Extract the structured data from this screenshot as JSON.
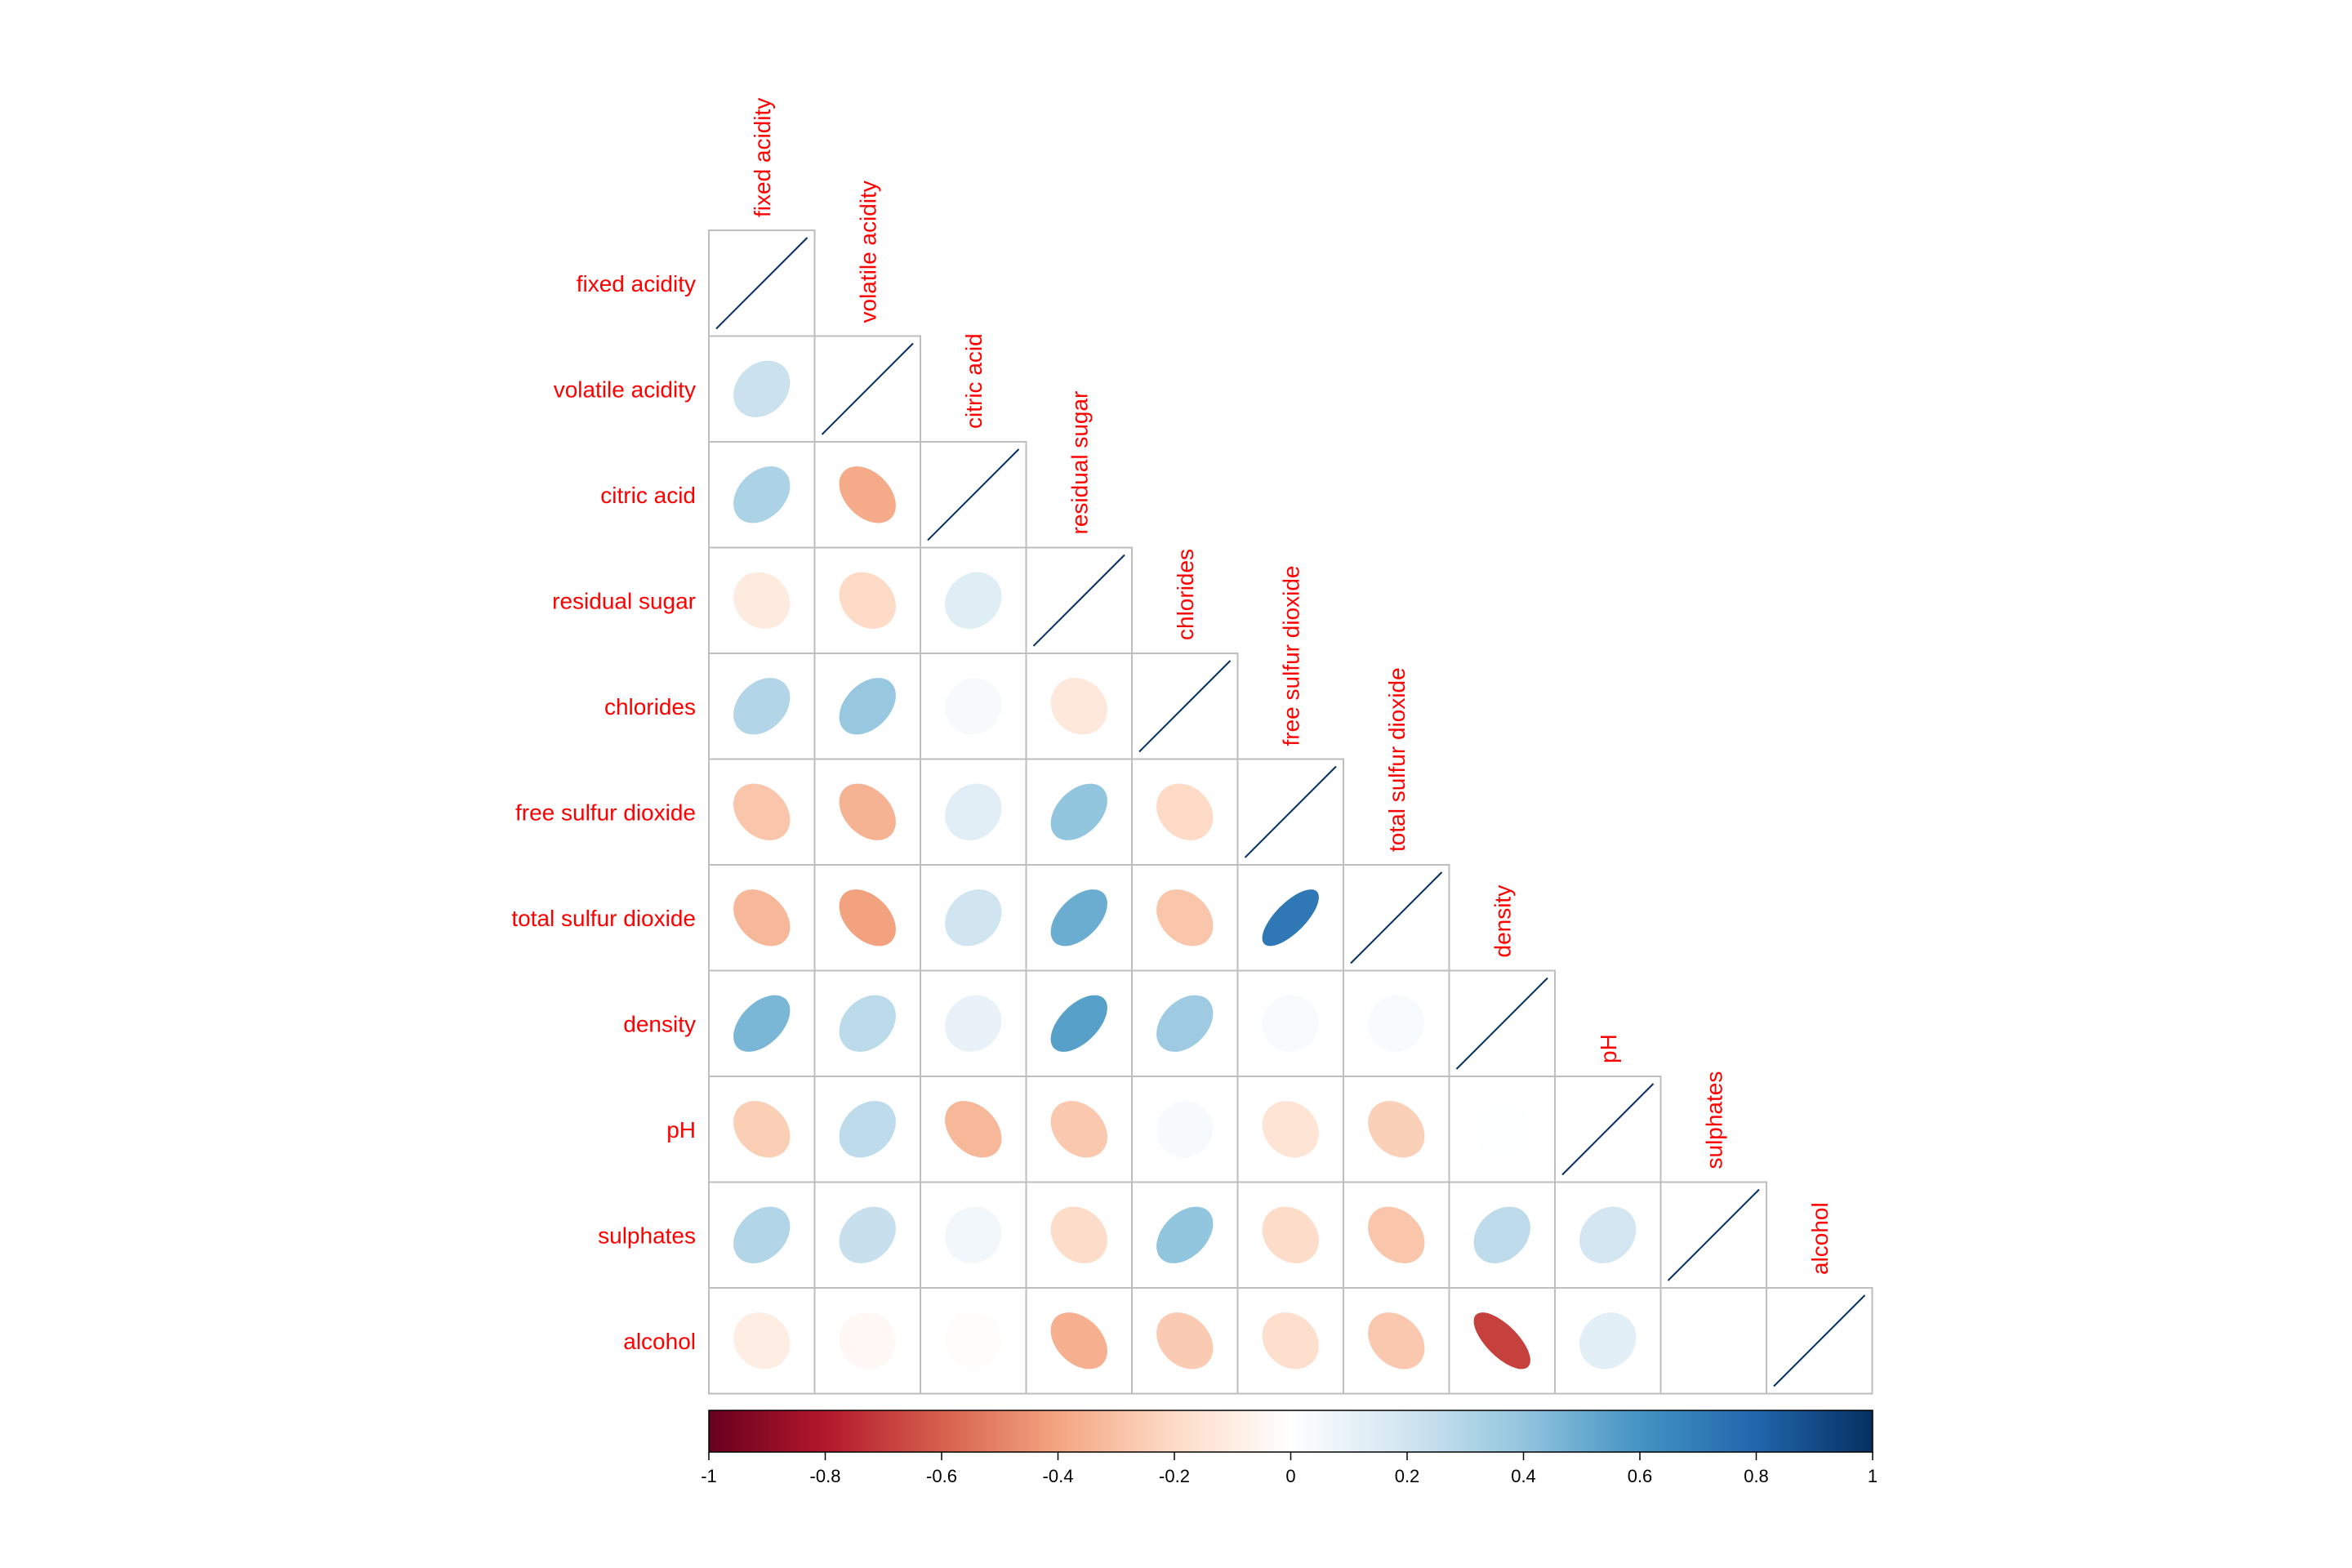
{
  "chart_data": {
    "type": "heatmap",
    "subtype": "correlation-matrix-ellipse-lower",
    "variables": [
      "fixed acidity",
      "volatile acidity",
      "citric acid",
      "residual sugar",
      "chlorides",
      "free sulfur dioxide",
      "total sulfur dioxide",
      "density",
      "pH",
      "sulphates",
      "alcohol"
    ],
    "matrix": [
      [
        1.0
      ],
      [
        0.22,
        1.0
      ],
      [
        0.32,
        -0.38,
        1.0
      ],
      [
        -0.11,
        -0.2,
        0.14,
        1.0
      ],
      [
        0.3,
        0.38,
        0.04,
        -0.13,
        1.0
      ],
      [
        -0.28,
        -0.35,
        0.13,
        0.4,
        -0.2,
        1.0
      ],
      [
        -0.33,
        -0.41,
        0.2,
        0.5,
        -0.28,
        0.72,
        1.0
      ],
      [
        0.46,
        0.27,
        0.1,
        0.55,
        0.36,
        0.03,
        0.03,
        1.0
      ],
      [
        -0.25,
        0.26,
        -0.33,
        -0.27,
        0.04,
        -0.15,
        -0.24,
        0.01,
        1.0
      ],
      [
        0.3,
        0.23,
        0.06,
        -0.19,
        0.4,
        -0.19,
        -0.28,
        0.26,
        0.19,
        1.0
      ],
      [
        -0.1,
        -0.04,
        -0.01,
        -0.36,
        -0.26,
        -0.18,
        -0.27,
        -0.69,
        0.12,
        -0.0,
        1.0
      ]
    ],
    "colorbar": {
      "ticks": [
        "-1",
        "-0.8",
        "-0.6",
        "-0.4",
        "-0.2",
        "0",
        "0.2",
        "0.4",
        "0.6",
        "0.8",
        "1"
      ],
      "range": [
        -1,
        1
      ]
    },
    "colors": {
      "negative_end": "#67001F",
      "positive_end": "#053061",
      "label": "#ff0000",
      "grid": "#bebebe"
    },
    "layout_hint": "lower triangle with labels on left and diagonal"
  }
}
